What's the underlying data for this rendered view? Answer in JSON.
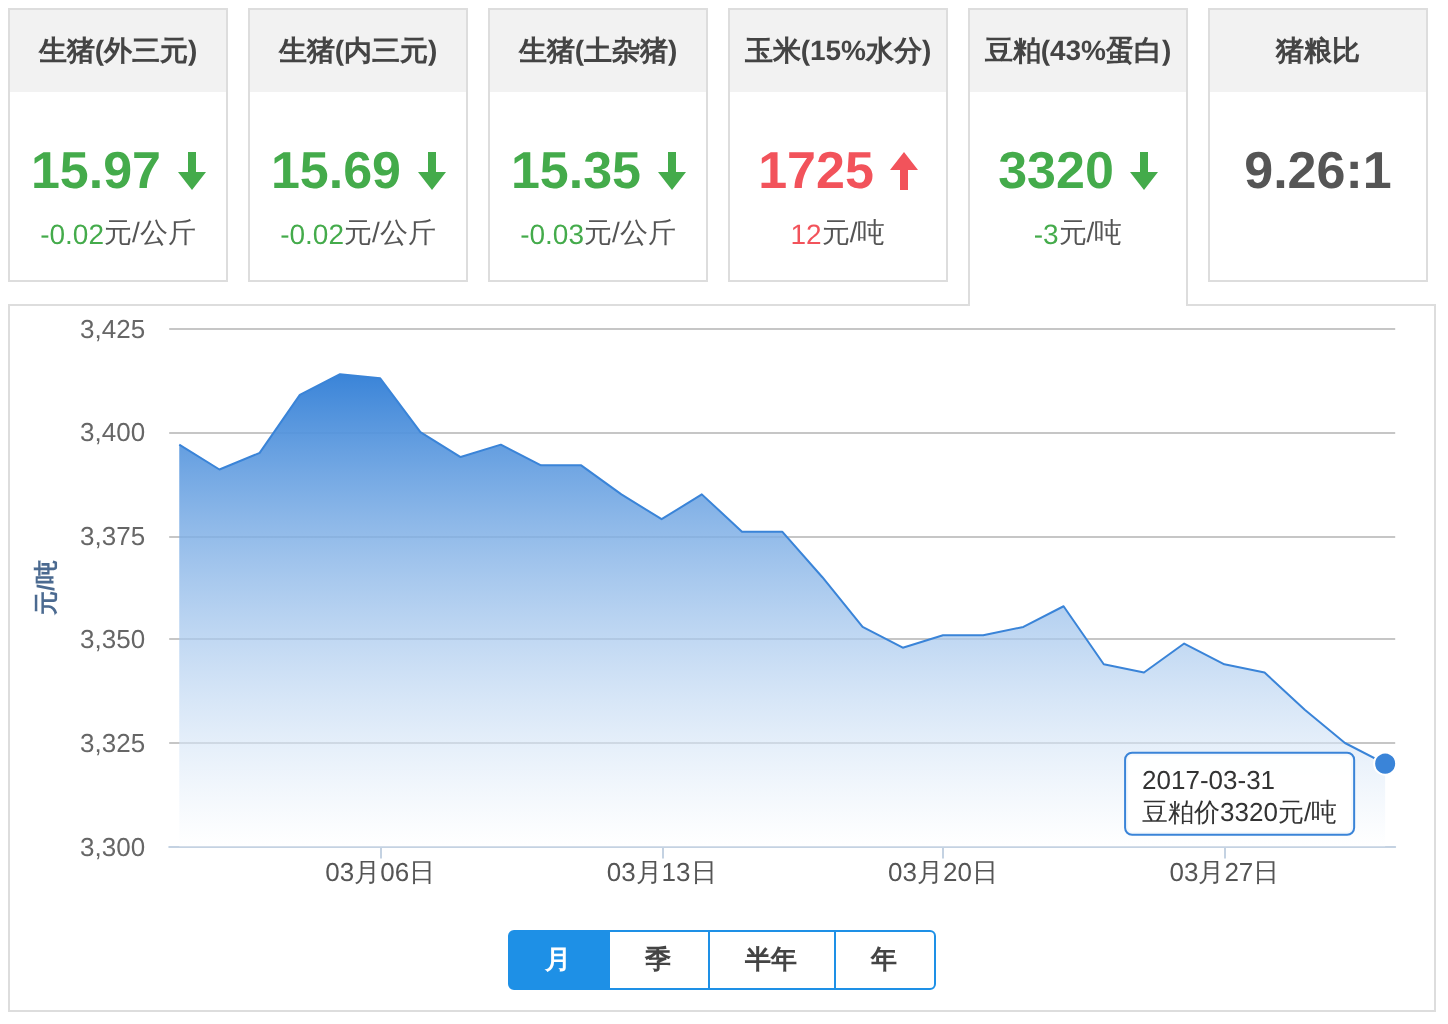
{
  "chart_data": [
    {
      "type": "other",
      "categories": [
        "生猪(外三元)",
        "生猪(内三元)",
        "生猪(土杂猪)",
        "玉米(15%水分)",
        "豆粕(43%蛋白)"
      ],
      "data_labels": true,
      "series": [
        {
          "values": [
            15.97,
            15.69,
            15.35,
            1725,
            3320
          ]
        },
        {
          "values": [
            -0.02,
            -0.02,
            -0.03,
            12,
            -3
          ]
        }
      ],
      "annotations": [
        "元/公斤",
        "元/公斤",
        "元/公斤",
        "元/吨",
        "元/吨"
      ]
    },
    {
      "type": "other",
      "title": "猪粮比",
      "annotations": [
        "9.26:1"
      ]
    },
    {
      "type": "area",
      "x": [
        "2017-03-01",
        "2017-03-02",
        "2017-03-03",
        "2017-03-04",
        "2017-03-05",
        "2017-03-06",
        "2017-03-07",
        "2017-03-08",
        "2017-03-09",
        "2017-03-10",
        "2017-03-11",
        "2017-03-12",
        "2017-03-13",
        "2017-03-14",
        "2017-03-15",
        "2017-03-16",
        "2017-03-17",
        "2017-03-18",
        "2017-03-19",
        "2017-03-20",
        "2017-03-21",
        "2017-03-22",
        "2017-03-23",
        "2017-03-24",
        "2017-03-25",
        "2017-03-26",
        "2017-03-27",
        "2017-03-28",
        "2017-03-29",
        "2017-03-30",
        "2017-03-31"
      ],
      "values": [
        3397,
        3391,
        3395,
        3409,
        3414,
        3413,
        3400,
        3394,
        3397,
        3392,
        3392,
        3385,
        3379,
        3385,
        3376,
        3376,
        3365,
        3353,
        3348,
        3351,
        3351,
        3353,
        3358,
        3344,
        3342,
        3349,
        3344,
        3342,
        3333,
        3325,
        3320
      ],
      "color": "#3a84d8",
      "xlim": [
        "2017-02-28T18:00",
        "2017-03-31T06:00"
      ],
      "xticks": [
        {
          "value": "2017-03-06",
          "label": "03月06日"
        },
        {
          "value": "2017-03-13",
          "label": "03月13日"
        },
        {
          "value": "2017-03-20",
          "label": "03月20日"
        },
        {
          "value": "2017-03-27",
          "label": "03月27日"
        }
      ],
      "ylim": [
        3300,
        3425
      ],
      "yticks": [
        {
          "value": 3300,
          "label": "3,300"
        },
        {
          "value": 3325,
          "label": "3,325"
        },
        {
          "value": 3350,
          "label": "3,350"
        },
        {
          "value": 3375,
          "label": "3,375"
        },
        {
          "value": 3400,
          "label": "3,400"
        },
        {
          "value": 3425,
          "label": "3,425"
        }
      ],
      "ylabel": "元/吨",
      "grid": "y",
      "marker": "none",
      "annotations": [
        {
          "text": "2017-03-31\n豆粕价3320元/吨",
          "x": "2017-03-31",
          "y": 3320
        }
      ]
    },
    {
      "type": "other",
      "categories": [
        "月",
        "季",
        "半年",
        "年"
      ]
    }
  ]
}
